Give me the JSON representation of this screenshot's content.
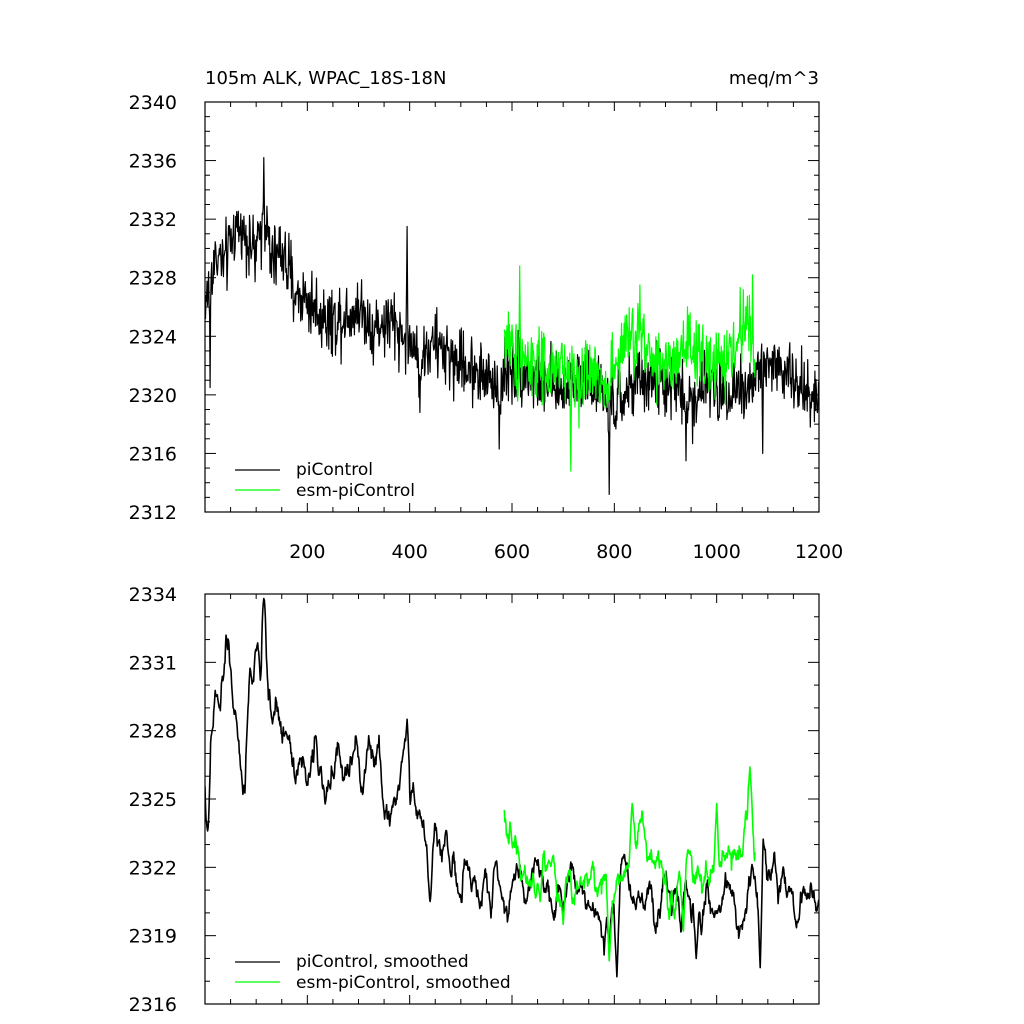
{
  "chart_data": [
    {
      "type": "line",
      "title": "105m ALK, WPAC_18S-18N",
      "units": "meq/m^3",
      "xlim": [
        0,
        1200
      ],
      "ylim": [
        2312,
        2340
      ],
      "x_ticks": [
        "200",
        "400",
        "600",
        "800",
        "1000",
        "1200"
      ],
      "x_tick_values": [
        200,
        400,
        600,
        800,
        1000,
        1200
      ],
      "y_ticks": [
        "2340",
        "2336",
        "2332",
        "2328",
        "2324",
        "2320",
        "2316",
        "2312"
      ],
      "y_tick_values": [
        2340,
        2336,
        2332,
        2328,
        2324,
        2320,
        2316,
        2312
      ],
      "legend_position": "bottom-left",
      "series": [
        {
          "name": "piControl",
          "color": "#000000",
          "x": [
            0,
            20,
            40,
            60,
            80,
            100,
            115,
            130,
            150,
            175,
            200,
            225,
            250,
            275,
            300,
            330,
            360,
            390,
            420,
            450,
            480,
            510,
            540,
            570,
            600,
            630,
            660,
            690,
            720,
            750,
            780,
            800,
            830,
            860,
            890,
            920,
            950,
            980,
            1000,
            1030,
            1060,
            1090,
            1120,
            1150,
            1180,
            1200
          ],
          "y": [
            2326,
            2329.5,
            2329,
            2331.5,
            2331,
            2329.5,
            2332.5,
            2329,
            2330,
            2327,
            2326.5,
            2325.5,
            2325,
            2325.5,
            2326,
            2324.5,
            2325,
            2324,
            2322.5,
            2323.5,
            2322.5,
            2322,
            2321.5,
            2320.5,
            2322,
            2321.5,
            2321,
            2320,
            2321.5,
            2321,
            2320,
            2319,
            2320.5,
            2321,
            2321,
            2320.5,
            2319.5,
            2321,
            2320,
            2320.5,
            2320.5,
            2322,
            2322,
            2321,
            2320,
            2320
          ],
          "noise": 2.2,
          "spikes": [
            [
              10,
              2320.5
            ],
            [
              115,
              2336.2
            ],
            [
              395,
              2331.5
            ],
            [
              420,
              2318.8
            ],
            [
              575,
              2316.3
            ],
            [
              790,
              2313.2
            ],
            [
              940,
              2315.5
            ],
            [
              1090,
              2316
            ]
          ]
        },
        {
          "name": "esm-piControl",
          "color": "#00ff00",
          "x": [
            585,
            610,
            640,
            670,
            700,
            730,
            760,
            790,
            820,
            850,
            880,
            910,
            940,
            970,
            1000,
            1030,
            1060,
            1075
          ],
          "y": [
            2324,
            2322.5,
            2322.5,
            2321,
            2322,
            2321,
            2321.5,
            2321,
            2323.5,
            2324,
            2322.5,
            2321.5,
            2323,
            2322.5,
            2322,
            2322.5,
            2325.5,
            2322
          ],
          "noise": 2.4,
          "spikes": [
            [
              615,
              2328.8
            ],
            [
              715,
              2314.8
            ],
            [
              850,
              2327.5
            ],
            [
              1070,
              2328.2
            ]
          ]
        }
      ]
    },
    {
      "type": "line",
      "xlim": [
        0,
        1200
      ],
      "ylim": [
        2316,
        2334
      ],
      "y_ticks": [
        "2334",
        "2331",
        "2328",
        "2325",
        "2322",
        "2319",
        "2316"
      ],
      "y_tick_values": [
        2334,
        2331,
        2328,
        2325,
        2322,
        2319,
        2316
      ],
      "legend_position": "bottom-left",
      "series": [
        {
          "name": "piControl, smoothed",
          "color": "#000000",
          "x": [
            0,
            5,
            10,
            20,
            30,
            40,
            45,
            50,
            60,
            70,
            78,
            82,
            88,
            95,
            100,
            110,
            115,
            120,
            130,
            140,
            150,
            165,
            175,
            185,
            200,
            215,
            225,
            235,
            250,
            260,
            270,
            285,
            300,
            310,
            320,
            330,
            340,
            350,
            360,
            370,
            380,
            390,
            400,
            410,
            420,
            430,
            440,
            450,
            460,
            470,
            480,
            490,
            500,
            510,
            520,
            530,
            540,
            550,
            560,
            570,
            580,
            590,
            600,
            610,
            620,
            630,
            640,
            650,
            660,
            670,
            680,
            690,
            700,
            710,
            720,
            730,
            740,
            750,
            760,
            770,
            780,
            790,
            800,
            810,
            820,
            830,
            840,
            850,
            860,
            870,
            880,
            890,
            900,
            910,
            920,
            930,
            940,
            950,
            960,
            970,
            980,
            990,
            1000,
            1010,
            1020,
            1030,
            1040,
            1050,
            1060,
            1070,
            1080,
            1090,
            1100,
            1110,
            1120,
            1130,
            1140,
            1150,
            1160,
            1170,
            1180,
            1190,
            1200
          ],
          "y": [
            2326,
            2323.6,
            2326.5,
            2329.5,
            2328.8,
            2331.5,
            2331.8,
            2330.5,
            2328.5,
            2326,
            2325.2,
            2328,
            2331,
            2329.5,
            2332,
            2330,
            2333.8,
            2331,
            2328.5,
            2329.5,
            2327.5,
            2328,
            2326.5,
            2327,
            2325.5,
            2327.5,
            2326.5,
            2324.5,
            2326.5,
            2327.5,
            2325.5,
            2326.5,
            2327,
            2325.5,
            2327.5,
            2326,
            2327.5,
            2324.5,
            2324,
            2325,
            2325.5,
            2327.5,
            2325,
            2325.5,
            2324.5,
            2323.5,
            2321.5,
            2323.5,
            2322.5,
            2323.5,
            2322.5,
            2321.5,
            2320.5,
            2322,
            2321.5,
            2321,
            2320.5,
            2321.5,
            2320.5,
            2322,
            2321,
            2320.5,
            2321,
            2322,
            2321.5,
            2320.5,
            2322,
            2322.5,
            2321,
            2321.5,
            2320.5,
            2321,
            2320.5,
            2321.5,
            2322.5,
            2321,
            2321.5,
            2320.5,
            2320,
            2320.5,
            2319,
            2321,
            2320.5,
            2321,
            2322,
            2321.5,
            2320.5,
            2321,
            2320.5,
            2321.5,
            2320,
            2320.5,
            2322,
            2320.5,
            2321.5,
            2319.5,
            2321,
            2320,
            2320.5,
            2319.5,
            2321,
            2320.5,
            2319.5,
            2320,
            2321.5,
            2321,
            2319.5,
            2319.5,
            2320.5,
            2321.5,
            2321,
            2323,
            2322,
            2322.5,
            2321.5,
            2322,
            2321,
            2320.5,
            2319.5,
            2321,
            2320.5,
            2320,
            2320
          ],
          "noise": 0.9,
          "spikes": [
            [
              5,
              2323.6
            ],
            [
              100,
              2331.5
            ],
            [
              115,
              2333.8
            ],
            [
              395,
              2328.5
            ],
            [
              440,
              2320.5
            ],
            [
              790,
              2318.2
            ],
            [
              805,
              2317.2
            ],
            [
              960,
              2318
            ],
            [
              1085,
              2317.6
            ]
          ]
        },
        {
          "name": "esm-piControl, smoothed",
          "color": "#00ff00",
          "x": [
            585,
            600,
            615,
            630,
            645,
            660,
            675,
            690,
            705,
            720,
            735,
            750,
            765,
            780,
            795,
            810,
            825,
            840,
            855,
            870,
            885,
            900,
            915,
            930,
            945,
            960,
            975,
            990,
            1005,
            1020,
            1035,
            1050,
            1065,
            1075
          ],
          "y": [
            2324.5,
            2323,
            2322.5,
            2322,
            2321,
            2322.5,
            2322,
            2321,
            2321.5,
            2321,
            2322,
            2321.5,
            2321,
            2321.5,
            2320.5,
            2321.5,
            2322,
            2323.5,
            2324,
            2322.5,
            2322,
            2321.5,
            2320.5,
            2321.5,
            2322.5,
            2322,
            2321.5,
            2322,
            2321.5,
            2322.5,
            2322,
            2323,
            2325.5,
            2323
          ],
          "noise": 1.0,
          "spikes": [
            [
              655,
              2320.5
            ],
            [
              700,
              2319.5
            ],
            [
              790,
              2317.9
            ],
            [
              835,
              2324.8
            ],
            [
              935,
              2319.2
            ],
            [
              1000,
              2324.8
            ],
            [
              1065,
              2326.4
            ]
          ]
        }
      ]
    }
  ]
}
